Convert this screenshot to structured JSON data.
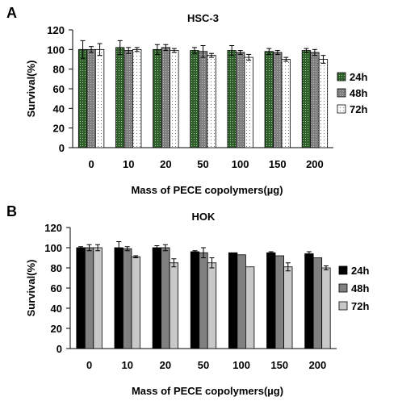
{
  "panels": [
    {
      "letter": "A",
      "colors": [
        "#2e5e2a",
        "#7f7f7f",
        "#ffffff"
      ],
      "patterned": true,
      "chart_data": {
        "type": "bar",
        "title": "HSC-3",
        "xlabel": "Mass of PECE copolymers(µg)",
        "ylabel": "Survival(%)",
        "ylim": [
          0,
          120
        ],
        "yticks": [
          0,
          20,
          40,
          60,
          80,
          100,
          120
        ],
        "categories": [
          "0",
          "10",
          "20",
          "50",
          "100",
          "150",
          "200"
        ],
        "legend_position": "right",
        "grid": false,
        "series": [
          {
            "name": "24h",
            "values": [
              100,
              102,
              100,
              99,
              99,
              98,
              99
            ],
            "errors": [
              9,
              7,
              5,
              3,
              5,
              3,
              2
            ]
          },
          {
            "name": "48h",
            "values": [
              100,
              99,
              102,
              98,
              97,
              97,
              97
            ],
            "errors": [
              3,
              3,
              3,
              6,
              2,
              2,
              3
            ]
          },
          {
            "name": "72h",
            "values": [
              100,
              100,
              99,
              94,
              92,
              90,
              90
            ],
            "errors": [
              6,
              2,
              2,
              2,
              3,
              2,
              4
            ]
          }
        ]
      }
    },
    {
      "letter": "B",
      "colors": [
        "#000000",
        "#808080",
        "#c8c8c8"
      ],
      "patterned": false,
      "chart_data": {
        "type": "bar",
        "title": "HOK",
        "xlabel": "Mass of PECE copolymers(µg)",
        "ylabel": "Survival(%)",
        "ylim": [
          0,
          120
        ],
        "yticks": [
          0,
          20,
          40,
          60,
          80,
          100,
          120
        ],
        "categories": [
          "0",
          "10",
          "20",
          "50",
          "100",
          "150",
          "200"
        ],
        "legend_position": "right",
        "grid": false,
        "series": [
          {
            "name": "24h",
            "values": [
              100,
              100,
              100,
              96,
              95,
              95,
              94
            ],
            "errors": [
              1,
              6,
              2,
              1,
              0,
              1,
              2
            ]
          },
          {
            "name": "48h",
            "values": [
              100,
              99,
              100,
              95,
              93,
              92,
              90
            ],
            "errors": [
              3,
              2,
              3,
              5,
              0,
              0,
              0
            ]
          },
          {
            "name": "72h",
            "values": [
              100,
              91,
              85,
              85,
              81,
              81,
              80
            ],
            "errors": [
              3,
              1,
              4,
              5,
              0,
              4,
              2
            ]
          }
        ]
      }
    }
  ]
}
